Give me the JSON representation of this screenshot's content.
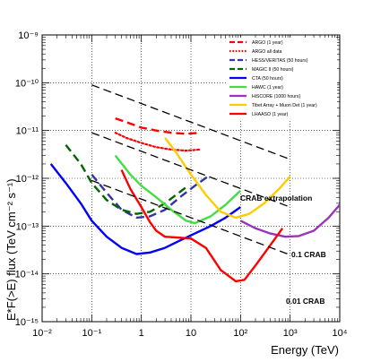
{
  "chart_data": {
    "type": "line",
    "title": "",
    "xlabel": "Energy (TeV)",
    "ylabel": "E*F(>E) flux (TeV cm⁻² s⁻¹)",
    "xscale": "log",
    "yscale": "log",
    "xlim": [
      0.01,
      10000
    ],
    "ylim": [
      1e-15,
      1e-09
    ],
    "grid": true,
    "legend_position": "top-right",
    "x_ticks": [
      "10⁻²",
      "10⁻¹",
      "1",
      "10",
      "10²",
      "10³",
      "10⁴"
    ],
    "y_ticks": [
      "10⁻¹⁵",
      "10⁻¹⁴",
      "10⁻¹³",
      "10⁻¹²",
      "10⁻¹¹",
      "10⁻¹⁰",
      "10⁻⁹"
    ],
    "series": [
      {
        "name": "ARGO (1 year)",
        "color": "#ff0000",
        "dash": "long",
        "x": [
          0.3,
          0.5,
          1,
          2,
          4,
          8,
          15
        ],
        "y": [
          1.8e-11,
          1.5e-11,
          1.15e-11,
          1e-11,
          9e-12,
          8.5e-12,
          9e-12
        ]
      },
      {
        "name": "ARGO all data",
        "color": "#ff0000",
        "dash": "dot",
        "x": [
          0.3,
          0.5,
          1,
          2,
          4,
          8,
          15
        ],
        "y": [
          9e-12,
          7e-12,
          5.5e-12,
          4.5e-12,
          4e-12,
          3.8e-12,
          4e-12
        ]
      },
      {
        "name": "HESS/VERITAS (50 hours)",
        "color": "#3333aa",
        "dash": "long",
        "x": [
          0.1,
          0.2,
          0.4,
          0.8,
          1.5,
          3,
          6,
          12,
          25
        ],
        "y": [
          1.2e-12,
          5e-13,
          2.2e-13,
          1.5e-13,
          1.6e-13,
          2.2e-13,
          4e-13,
          7e-13,
          1.2e-12
        ]
      },
      {
        "name": "MAGIC II (50 hours)",
        "color": "#006600",
        "dash": "long",
        "x": [
          0.03,
          0.06,
          0.1,
          0.2,
          0.4,
          0.8,
          1.5,
          3,
          5,
          8
        ],
        "y": [
          5e-12,
          2e-12,
          8e-13,
          3.5e-13,
          2.2e-13,
          1.8e-13,
          2e-13,
          3e-13,
          4.5e-13,
          6.5e-13
        ]
      },
      {
        "name": "CTA (50 hours)",
        "color": "#0000ff",
        "dash": "solid",
        "x": [
          0.015,
          0.03,
          0.06,
          0.1,
          0.2,
          0.4,
          0.8,
          1.5,
          3,
          6,
          12,
          25,
          50,
          100
        ],
        "y": [
          2e-12,
          8e-13,
          3e-13,
          1.3e-13,
          6e-14,
          3.5e-14,
          2.6e-14,
          2.8e-14,
          3.5e-14,
          5e-14,
          7e-14,
          1e-13,
          1.5e-13,
          2.5e-13
        ]
      },
      {
        "name": "HAWC (1 year)",
        "color": "#44dd44",
        "dash": "solid",
        "x": [
          0.3,
          0.6,
          1,
          2,
          4,
          8,
          12,
          25,
          50,
          100
        ],
        "y": [
          3e-12,
          1.2e-12,
          7e-13,
          4e-13,
          2.2e-13,
          1.3e-13,
          1.15e-13,
          1.6e-13,
          2.8e-13,
          5.5e-13
        ]
      },
      {
        "name": "HiSCORE (1000 hours)",
        "color": "#9933bb",
        "dash": "solid",
        "x": [
          100,
          200,
          400,
          800,
          1500,
          3000,
          6000,
          10000
        ],
        "y": [
          1.3e-13,
          9e-14,
          7e-14,
          6e-14,
          6.2e-14,
          8e-14,
          1.5e-13,
          2.8e-13
        ]
      },
      {
        "name": "Tibet Array + Muon Det (1 year)",
        "color": "#ffcc00",
        "dash": "solid",
        "x": [
          3,
          5,
          10,
          20,
          40,
          80,
          150,
          300,
          600,
          1000
        ],
        "y": [
          7e-12,
          3.5e-12,
          1.2e-12,
          4.5e-13,
          2e-13,
          1.5e-13,
          1.8e-13,
          3e-13,
          6e-13,
          1.1e-12
        ]
      },
      {
        "name": "LHAASO (1 year)",
        "color": "#ff0000",
        "dash": "solid",
        "x": [
          0.4,
          0.6,
          1,
          1.5,
          2,
          3,
          5,
          10,
          20,
          40,
          80,
          120,
          200,
          400,
          700
        ],
        "y": [
          1.5e-12,
          6e-13,
          2.5e-13,
          1.2e-13,
          8e-14,
          6e-14,
          5.8e-14,
          5.5e-14,
          3.5e-14,
          1.2e-14,
          7e-15,
          7.5e-15,
          1.5e-14,
          4e-14,
          9e-14
        ]
      }
    ],
    "reference_lines": [
      {
        "label": "CRAB extrapolation",
        "color": "#000000",
        "dash": "long",
        "x": [
          0.1,
          1000
        ],
        "y": [
          9e-11,
          2.5e-12
        ]
      },
      {
        "label": "0.1 CRAB",
        "color": "#000000",
        "dash": "long",
        "x": [
          0.1,
          1000
        ],
        "y": [
          9e-12,
          2.5e-13
        ]
      },
      {
        "label": "0.01 CRAB",
        "color": "#000000",
        "dash": "long",
        "x": [
          0.1,
          1000
        ],
        "y": [
          9e-13,
          2.5e-14
        ]
      }
    ]
  }
}
